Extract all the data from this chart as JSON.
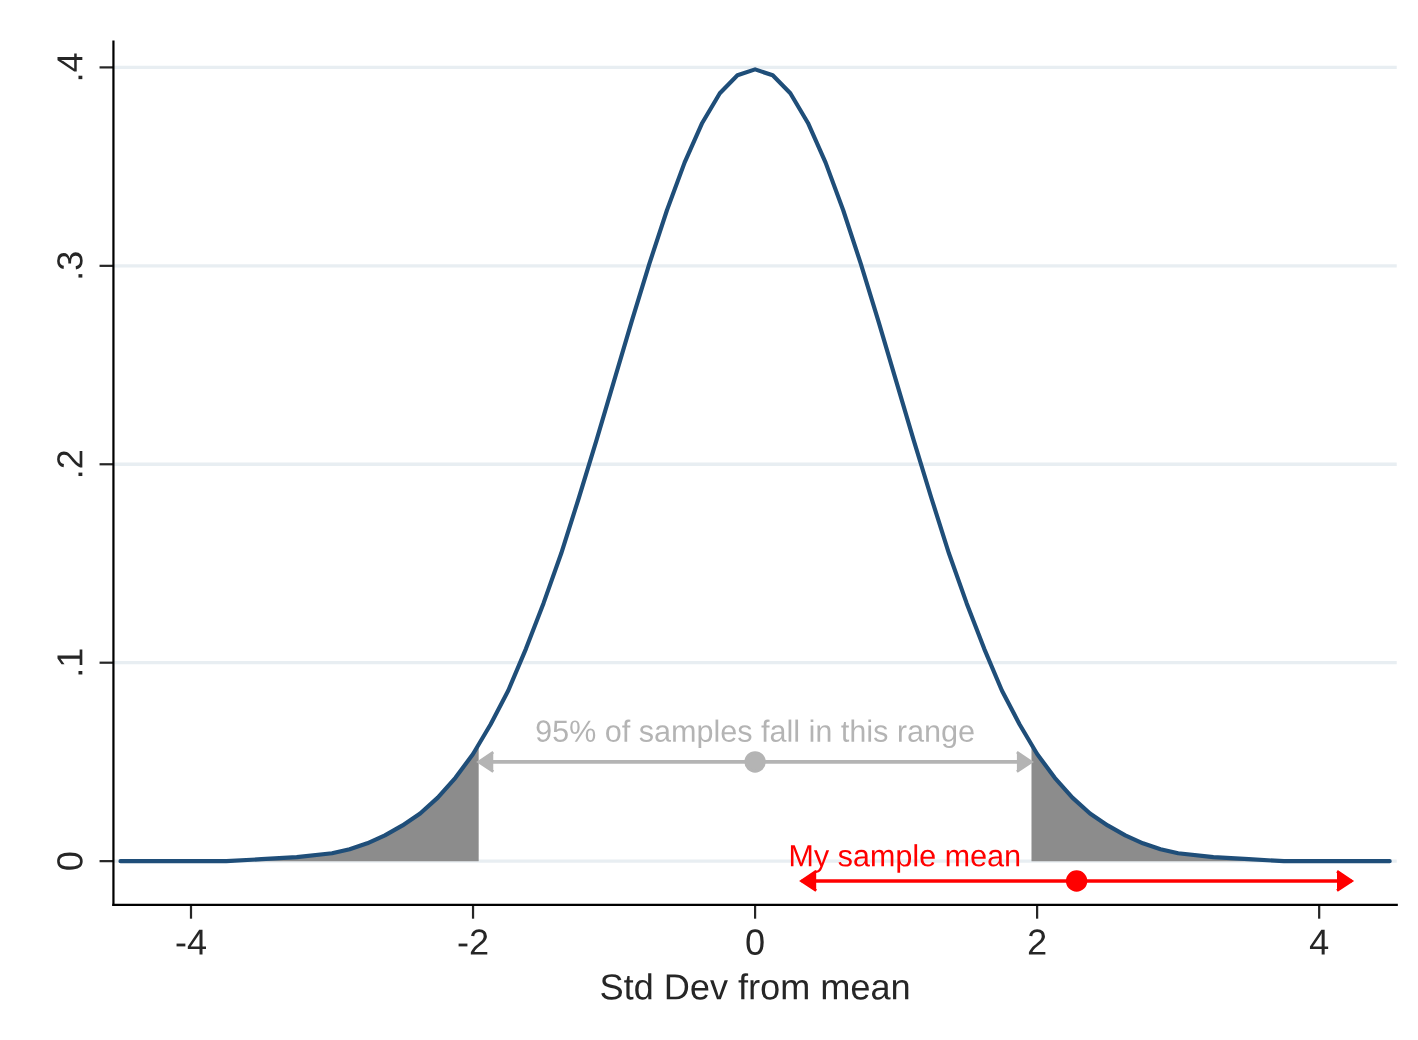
{
  "chart_data": {
    "type": "line",
    "xlabel": "Std Dev from mean",
    "xlim": [
      -4.55,
      4.55
    ],
    "ylim": [
      -0.022,
      0.413
    ],
    "xticks": [
      -4,
      -2,
      0,
      2,
      4
    ],
    "yticks": [
      0,
      {
        "value": 0.1,
        "label": ".1"
      },
      {
        "value": 0.2,
        "label": ".2"
      },
      {
        "value": 0.3,
        "label": ".3"
      },
      {
        "value": 0.4,
        "label": ".4"
      }
    ],
    "grid": "y",
    "series": [
      {
        "type": "area",
        "color": "#8c8c8c",
        "x": [
          -4.5,
          -4.25,
          -4,
          -3.75,
          -3.5,
          -3.25,
          -3,
          -2.75,
          -2.5,
          -2.25,
          -2,
          -1.96
        ],
        "values": [
          0.0,
          0.0,
          0.0,
          0.0,
          0.001,
          0.002,
          0.004,
          0.009,
          0.018,
          0.032,
          0.054,
          0.058
        ]
      },
      {
        "type": "area",
        "color": "#8c8c8c",
        "x": [
          1.96,
          2,
          2.25,
          2.5,
          2.75,
          3,
          3.25,
          3.5,
          3.75,
          4,
          4.25,
          4.5
        ],
        "values": [
          0.058,
          0.054,
          0.032,
          0.018,
          0.009,
          0.004,
          0.002,
          0.001,
          0.0,
          0.0,
          0.0,
          0.0
        ]
      },
      {
        "color": "#1f4e79",
        "x": [
          -4.5,
          -4.25,
          -4,
          -3.75,
          -3.5,
          -3.25,
          -3,
          -2.875,
          -2.75,
          -2.625,
          -2.5,
          -2.375,
          -2.25,
          -2.125,
          -2,
          -1.875,
          -1.75,
          -1.625,
          -1.5,
          -1.375,
          -1.25,
          -1.125,
          -1,
          -0.875,
          -0.75,
          -0.625,
          -0.5,
          -0.375,
          -0.25,
          -0.125,
          0,
          0.125,
          0.25,
          0.375,
          0.5,
          0.625,
          0.75,
          0.875,
          1,
          1.125,
          1.25,
          1.375,
          1.5,
          1.625,
          1.75,
          1.875,
          2,
          2.125,
          2.25,
          2.375,
          2.5,
          2.625,
          2.75,
          2.875,
          3,
          3.25,
          3.5,
          3.75,
          4,
          4.25,
          4.5
        ],
        "values": [
          0.0,
          0.0,
          0.0,
          0.0,
          0.001,
          0.002,
          0.004,
          0.006,
          0.009,
          0.013,
          0.018,
          0.024,
          0.032,
          0.042,
          0.054,
          0.069,
          0.086,
          0.107,
          0.13,
          0.155,
          0.183,
          0.212,
          0.242,
          0.272,
          0.301,
          0.328,
          0.352,
          0.372,
          0.387,
          0.396,
          0.399,
          0.396,
          0.387,
          0.372,
          0.352,
          0.328,
          0.301,
          0.272,
          0.242,
          0.212,
          0.183,
          0.155,
          0.13,
          0.107,
          0.086,
          0.069,
          0.054,
          0.042,
          0.032,
          0.024,
          0.018,
          0.013,
          0.009,
          0.006,
          0.004,
          0.002,
          0.001,
          0.0,
          0.0,
          0.0,
          0.0
        ]
      },
      {
        "type": "scatter",
        "color": "#b4b4b4",
        "marker": "circle",
        "x": [
          0
        ],
        "values": [
          0.05
        ],
        "xerrors": [
          [
            -1.96,
            1.96
          ]
        ]
      },
      {
        "type": "scatter",
        "color": "#ff0000",
        "marker": "circle",
        "x": [
          2.28
        ],
        "values": [
          -0.01
        ],
        "xerrors": [
          [
            0.33,
            4.23
          ]
        ]
      }
    ],
    "annotations": [
      {
        "text": "95% of samples fall in this range",
        "x": 0,
        "y": 0.05
      },
      {
        "text": "My sample mean",
        "x": 2.28,
        "y": -0.01
      }
    ]
  }
}
